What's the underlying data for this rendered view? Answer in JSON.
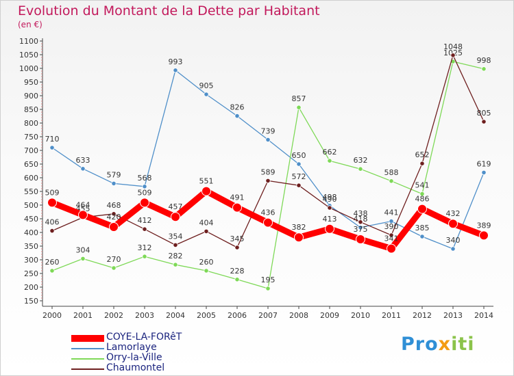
{
  "header": {
    "title": "Evolution du Montant de la Dette par Habitant",
    "unit": "(en €)"
  },
  "brand": {
    "prefix": "Pro",
    "middle": "x",
    "suffix": "iti"
  },
  "chart_data": {
    "type": "line",
    "x": [
      2000,
      2001,
      2002,
      2003,
      2004,
      2005,
      2006,
      2007,
      2008,
      2009,
      2010,
      2011,
      2012,
      2013,
      2014
    ],
    "ylim": [
      150,
      1100
    ],
    "yticks": [
      150,
      200,
      250,
      300,
      350,
      400,
      450,
      500,
      550,
      600,
      650,
      700,
      750,
      800,
      850,
      900,
      950,
      1000,
      1050,
      1100
    ],
    "title": "Evolution du Montant de la Dette par Habitant",
    "ylabel": "(en €)",
    "grid": false,
    "legend_position": "bottom-left",
    "series": [
      {
        "name": "COYE-LA-FORêT",
        "color": "#ff0000",
        "style": "thick",
        "values": [
          509,
          464,
          420,
          509,
          457,
          551,
          491,
          436,
          382,
          413,
          375,
          341,
          486,
          432,
          389
        ],
        "labels": [
          "509",
          "464",
          "420",
          "509",
          "457",
          "551",
          "491",
          "436",
          "382",
          "413",
          "375",
          "341",
          "486",
          "432",
          "389"
        ]
      },
      {
        "name": "Lamorlaye",
        "color": "#4f8fc9",
        "style": "thin",
        "values": [
          710,
          633,
          579,
          568,
          993,
          905,
          826,
          739,
          650,
          498,
          418,
          441,
          385,
          340,
          619
        ],
        "labels": [
          "710",
          "633",
          "579",
          "568",
          "993",
          "905",
          "826",
          "739",
          "650",
          "498",
          "418",
          "441",
          "385",
          "340",
          "619"
        ]
      },
      {
        "name": "Orry-la-Ville",
        "color": "#7ed957",
        "style": "thin",
        "values": [
          260,
          304,
          270,
          312,
          282,
          260,
          228,
          195,
          857,
          662,
          632,
          588,
          541,
          1025,
          998
        ],
        "labels": [
          "260",
          "304",
          "270",
          "312",
          "282",
          "260",
          "228",
          "195",
          "857",
          "662",
          "632",
          "588",
          "541",
          "1025",
          "998"
        ]
      },
      {
        "name": "Chaumontel",
        "color": "#6e1f1f",
        "style": "thin",
        "values": [
          406,
          455,
          468,
          412,
          354,
          404,
          345,
          589,
          572,
          490,
          438,
          390,
          652,
          1048,
          805
        ],
        "labels": [
          "406",
          "455",
          "468",
          "412",
          "354",
          "404",
          "345",
          "589",
          "572",
          "490",
          "438",
          "390",
          "652",
          "1048",
          "805"
        ]
      }
    ]
  }
}
